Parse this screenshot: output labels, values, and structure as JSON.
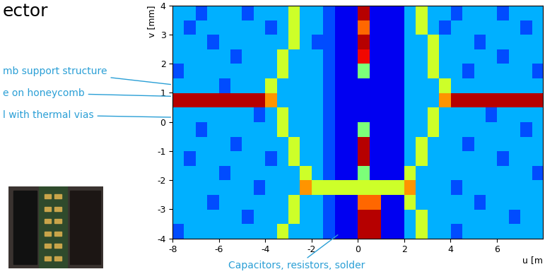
{
  "slide_title": "ector",
  "chart_data": {
    "type": "heatmap",
    "x_label": "u [m",
    "y_label": "v [mm]",
    "xlim": [
      -8,
      8
    ],
    "ylim": [
      -4,
      4
    ],
    "xticks": [
      -8,
      -6,
      -4,
      -2,
      0,
      2,
      4,
      6
    ],
    "yticks": [
      -4,
      -3,
      -2,
      -1,
      0,
      1,
      2,
      3,
      4
    ],
    "color_range": [
      0,
      10
    ],
    "cells": [
      [
        3,
        3,
        2,
        3,
        3,
        3,
        2,
        3,
        3,
        3,
        6,
        3,
        3,
        2,
        1,
        1,
        9.5,
        1,
        1,
        1,
        3,
        6,
        3,
        3,
        2,
        3,
        3,
        3,
        2,
        3,
        3,
        3
      ],
      [
        3,
        2,
        3,
        3,
        3,
        3,
        3,
        3,
        2,
        3,
        6,
        3,
        3,
        2,
        1,
        1,
        8,
        1,
        1,
        1,
        3,
        6,
        3,
        2,
        3,
        3,
        3,
        3,
        3,
        3,
        2,
        3
      ],
      [
        3,
        3,
        3,
        2,
        3,
        3,
        3,
        3,
        3,
        3,
        6,
        3,
        2,
        2,
        1,
        1,
        9.5,
        1,
        1,
        1,
        3,
        3,
        6,
        3,
        3,
        3,
        2,
        3,
        3,
        3,
        3,
        3
      ],
      [
        3,
        3,
        3,
        3,
        3,
        2,
        3,
        3,
        3,
        6,
        3,
        3,
        3,
        2,
        1,
        1,
        9,
        1,
        1,
        1,
        3,
        3,
        6,
        3,
        3,
        3,
        3,
        3,
        2,
        3,
        3,
        3
      ],
      [
        2,
        3,
        3,
        3,
        3,
        3,
        3,
        3,
        3,
        6,
        3,
        3,
        3,
        2,
        1,
        1,
        5,
        1,
        1,
        1,
        3,
        3,
        6,
        3,
        3,
        2,
        3,
        3,
        3,
        3,
        3,
        2
      ],
      [
        3,
        3,
        3,
        3,
        2,
        3,
        3,
        3,
        6,
        3,
        3,
        3,
        3,
        2,
        1,
        1,
        1,
        1,
        1,
        1,
        3,
        3,
        3,
        6,
        3,
        3,
        3,
        3,
        3,
        3,
        3,
        3
      ],
      [
        9.5,
        9.5,
        9.5,
        9.5,
        9.5,
        9.5,
        9.5,
        9.5,
        7.5,
        3,
        3,
        3,
        3,
        2,
        1,
        1,
        1,
        1,
        1,
        1,
        3,
        3,
        3,
        7.5,
        9.5,
        9.5,
        9.5,
        9.5,
        9.5,
        9.5,
        9.5,
        9.5
      ],
      [
        3,
        3,
        3,
        3,
        3,
        3,
        3,
        2,
        3,
        6,
        3,
        3,
        3,
        2,
        1,
        1,
        1,
        1,
        1,
        1,
        3,
        3,
        6,
        3,
        3,
        3,
        3,
        2,
        3,
        3,
        3,
        3
      ],
      [
        3,
        3,
        2,
        3,
        3,
        3,
        3,
        3,
        3,
        6,
        3,
        3,
        3,
        2,
        1,
        1,
        5,
        1,
        1,
        1,
        3,
        3,
        6,
        3,
        3,
        3,
        3,
        3,
        3,
        3,
        2,
        3
      ],
      [
        3,
        3,
        3,
        3,
        3,
        2,
        3,
        3,
        3,
        3,
        6,
        3,
        3,
        2,
        1,
        1,
        9.5,
        1,
        1,
        1,
        3,
        6,
        3,
        3,
        3,
        2,
        3,
        3,
        3,
        3,
        3,
        3
      ],
      [
        3,
        2,
        3,
        3,
        3,
        3,
        3,
        3,
        2,
        3,
        6,
        3,
        3,
        2,
        1,
        1,
        9.5,
        1,
        1,
        1,
        3,
        6,
        3,
        3,
        3,
        3,
        3,
        3,
        2,
        3,
        3,
        3
      ],
      [
        3,
        3,
        3,
        3,
        2,
        3,
        3,
        3,
        3,
        3,
        3,
        6,
        3,
        2,
        1,
        1,
        5,
        1,
        1,
        1,
        6,
        3,
        3,
        3,
        3,
        3,
        3,
        3,
        3,
        3,
        3,
        2
      ],
      [
        3,
        3,
        3,
        3,
        3,
        3,
        3,
        2,
        3,
        3,
        3,
        7.5,
        6,
        6,
        6,
        6,
        6,
        6,
        6,
        6,
        7.5,
        3,
        3,
        3,
        2,
        3,
        3,
        3,
        3,
        3,
        3,
        3
      ],
      [
        3,
        3,
        3,
        2,
        3,
        3,
        3,
        3,
        3,
        3,
        6,
        3,
        3,
        2,
        1,
        1,
        8,
        8,
        1,
        1,
        6,
        3,
        3,
        3,
        3,
        3,
        2,
        3,
        3,
        3,
        3,
        3
      ],
      [
        3,
        3,
        3,
        3,
        3,
        3,
        2,
        3,
        3,
        3,
        6,
        3,
        3,
        2,
        1,
        1,
        9.5,
        9.5,
        1,
        1,
        3,
        6,
        3,
        3,
        3,
        3,
        3,
        3,
        3,
        2,
        3,
        3
      ],
      [
        2,
        3,
        3,
        3,
        3,
        3,
        3,
        3,
        3,
        6,
        3,
        3,
        3,
        2,
        1,
        1,
        9.5,
        9.5,
        1,
        1,
        3,
        6,
        3,
        3,
        2,
        3,
        3,
        3,
        3,
        3,
        3,
        3
      ]
    ]
  },
  "annotations": [
    "mb support structure",
    "e on honeycomb",
    "l with thermal vias",
    "Capacitors, resistors, solder"
  ]
}
